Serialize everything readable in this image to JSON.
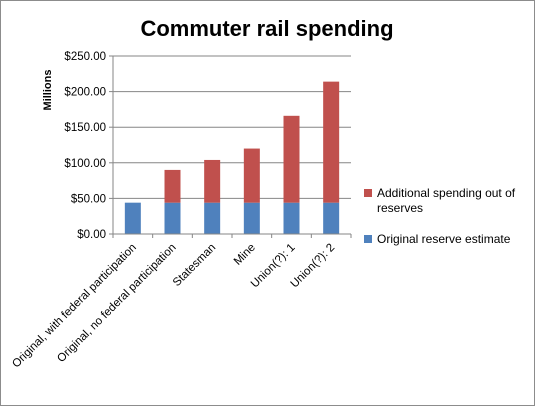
{
  "chart_data": {
    "type": "bar",
    "stacked": true,
    "title": "Commuter rail spending",
    "xlabel": "",
    "ylabel": "Millions",
    "ylim": [
      0,
      250
    ],
    "yticks": [
      "$0.00",
      "$50.00",
      "$100.00",
      "$150.00",
      "$200.00",
      "$250.00"
    ],
    "ytick_values": [
      0,
      50,
      100,
      150,
      200,
      250
    ],
    "grid": "horizontal",
    "legend_position": "right",
    "categories": [
      "Original, with federal participation",
      "Original, no federal participation",
      "Statesman",
      "Mine",
      "Union(?): 1",
      "Union(?): 2"
    ],
    "series": [
      {
        "name": "Original reserve estimate",
        "color": "#4f81bd",
        "values": [
          44,
          44,
          44,
          44,
          44,
          44
        ]
      },
      {
        "name": "Additional spending out of reserves",
        "color": "#c0504d",
        "values": [
          0,
          46,
          60,
          76,
          122,
          170
        ]
      }
    ]
  }
}
